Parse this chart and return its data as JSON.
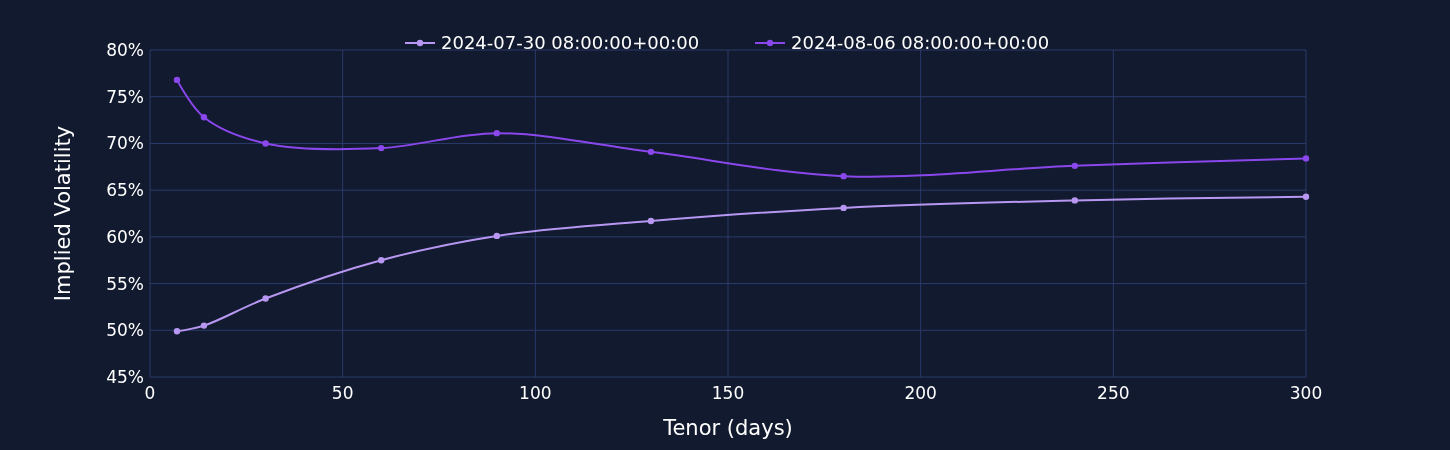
{
  "chart_data": {
    "type": "line",
    "xlabel": "Tenor (days)",
    "ylabel": "Implied Volatility",
    "series": [
      {
        "name": "2024-07-30 08:00:00+00:00",
        "color": "#b797f2",
        "x": [
          7,
          14,
          30,
          60,
          90,
          130,
          180,
          240,
          300
        ],
        "values": [
          49.9,
          50.5,
          53.4,
          57.5,
          60.1,
          61.7,
          63.1,
          63.9,
          64.3
        ]
      },
      {
        "name": "2024-08-06 08:00:00+00:00",
        "color": "#8a47ec",
        "x": [
          7,
          14,
          30,
          60,
          90,
          130,
          180,
          240,
          300
        ],
        "values": [
          76.8,
          72.8,
          70.0,
          69.5,
          71.1,
          69.1,
          66.5,
          67.6,
          68.4
        ]
      }
    ],
    "xlim": [
      0,
      300
    ],
    "xticks": [
      0,
      50,
      100,
      150,
      200,
      250,
      300
    ],
    "ylim": [
      45,
      80
    ],
    "yticks": [
      {
        "value": 45,
        "label": "45%"
      },
      {
        "value": 50,
        "label": "50%"
      },
      {
        "value": 55,
        "label": "55%"
      },
      {
        "value": 60,
        "label": "60%"
      },
      {
        "value": 65,
        "label": "65%"
      },
      {
        "value": 70,
        "label": "70%"
      },
      {
        "value": 75,
        "label": "75%"
      },
      {
        "value": 80,
        "label": "80%"
      }
    ],
    "grid": true,
    "legend": "top",
    "marker": "circle",
    "line_style": "solid"
  }
}
